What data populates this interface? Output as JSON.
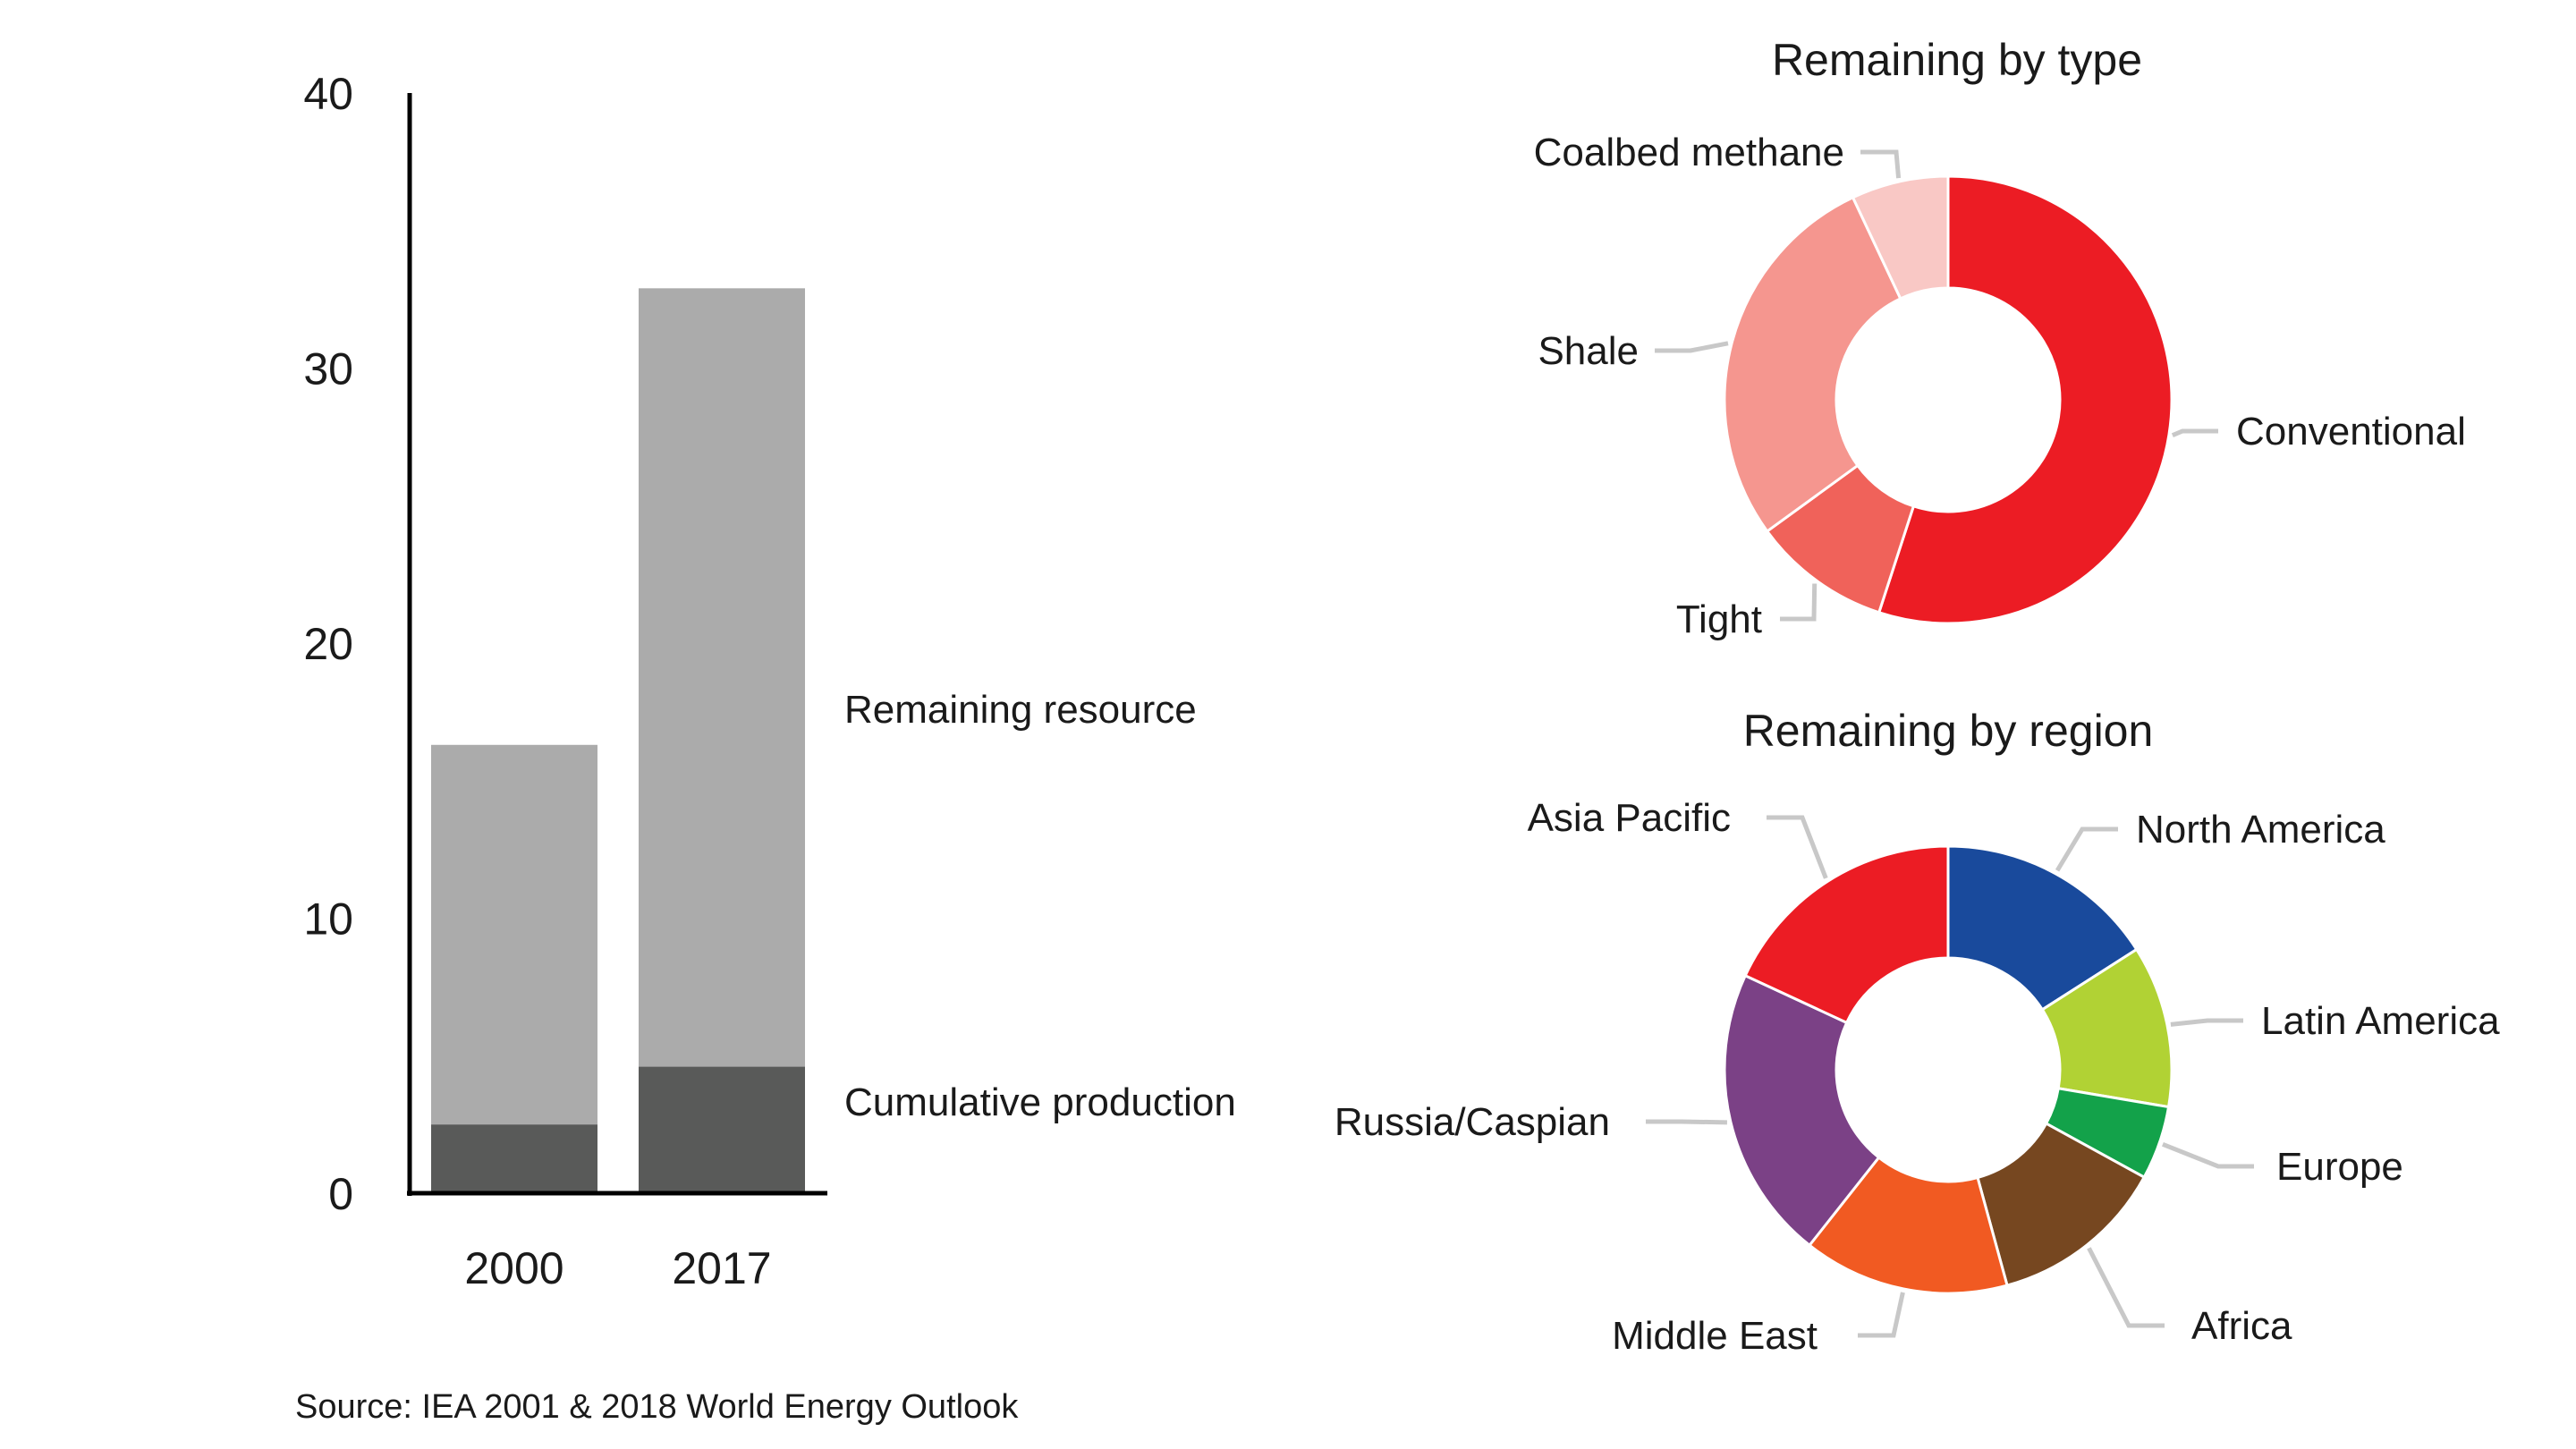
{
  "chart_data": [
    {
      "type": "bar",
      "stacked": true,
      "categories": [
        "2000",
        "2017"
      ],
      "ylim": [
        0,
        40
      ],
      "yticks": [
        "0",
        "10",
        "20",
        "30",
        "40"
      ],
      "grid": false,
      "series": [
        {
          "name": "Cumulative production",
          "values": [
            2.5,
            4.6
          ],
          "color": "#595a59"
        },
        {
          "name": "Remaining resource",
          "values": [
            13.8,
            28.3
          ],
          "color": "#ababab"
        }
      ]
    },
    {
      "type": "pie",
      "donut": true,
      "title": "Remaining by type",
      "slices": [
        {
          "label": "Conventional",
          "value": 55,
          "color": "#ec1c24"
        },
        {
          "label": "Tight",
          "value": 10,
          "color": "#f0625a"
        },
        {
          "label": "Shale",
          "value": 28,
          "color": "#f5968f"
        },
        {
          "label": "Coalbed methane",
          "value": 7,
          "color": "#f9c8c5"
        }
      ]
    },
    {
      "type": "pie",
      "donut": true,
      "title": "Remaining by region",
      "slices": [
        {
          "label": "North America",
          "value": 15,
          "color": "#194a9c"
        },
        {
          "label": "Latin America",
          "value": 11,
          "color": "#b1d234"
        },
        {
          "label": "Europe",
          "value": 5,
          "color": "#13a24a"
        },
        {
          "label": "Africa",
          "value": 12,
          "color": "#764720"
        },
        {
          "label": "Middle East",
          "value": 14,
          "color": "#f15a22"
        },
        {
          "label": "Russia/Caspian",
          "value": 20,
          "color": "#7b4186"
        },
        {
          "label": "Asia Pacific",
          "value": 17,
          "color": "#ec1c24"
        }
      ]
    }
  ],
  "source": "Source: IEA 2001 & 2018 World Energy Outlook"
}
